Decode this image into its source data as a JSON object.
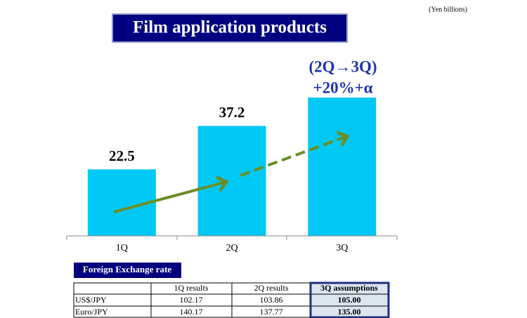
{
  "chart_data": {
    "type": "bar",
    "title": "Film application products",
    "unit": "(Yen billions)",
    "categories": [
      "1Q",
      "2Q",
      "3Q"
    ],
    "values": [
      22.5,
      37.2,
      46.8
    ],
    "value_labels": [
      "22.5",
      "37.2",
      null
    ],
    "color": "#00c8f5",
    "annotations": [
      "(2Q→3Q)",
      "+20%+α"
    ]
  },
  "table": {
    "title": "Foreign Exchange rate",
    "columns": [
      "1Q results",
      "2Q results",
      "3Q assumptions"
    ],
    "rows": [
      [
        "US$/JPY",
        "102.17",
        "103.86",
        "105.00"
      ],
      [
        "Euro/JPY",
        "140.17",
        "137.77",
        "135.00"
      ]
    ]
  }
}
